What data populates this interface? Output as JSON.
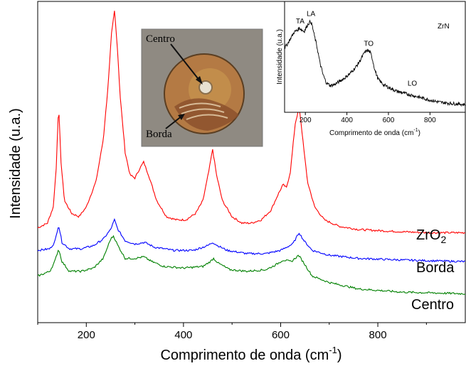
{
  "chart_data": {
    "type": "line",
    "xlabel": "Comprimento de onda (cm",
    "xlabel_sup": "-1",
    "xlabel_end": ")",
    "ylabel": "Intensidade (u.a.)",
    "xlim": [
      100,
      980
    ],
    "xticks": [
      200,
      400,
      600,
      800
    ],
    "grid": false,
    "series": [
      {
        "name": "ZrO",
        "name_sub": "2",
        "color": "#ff0000",
        "points": [
          [
            100,
            0.295
          ],
          [
            120,
            0.31
          ],
          [
            132,
            0.36
          ],
          [
            138,
            0.48
          ],
          [
            143,
            0.68
          ],
          [
            148,
            0.5
          ],
          [
            155,
            0.38
          ],
          [
            170,
            0.34
          ],
          [
            185,
            0.33
          ],
          [
            200,
            0.36
          ],
          [
            220,
            0.44
          ],
          [
            235,
            0.57
          ],
          [
            245,
            0.74
          ],
          [
            252,
            0.9
          ],
          [
            258,
            0.97
          ],
          [
            263,
            0.88
          ],
          [
            270,
            0.7
          ],
          [
            280,
            0.53
          ],
          [
            290,
            0.46
          ],
          [
            300,
            0.45
          ],
          [
            310,
            0.48
          ],
          [
            318,
            0.5
          ],
          [
            328,
            0.46
          ],
          [
            345,
            0.38
          ],
          [
            365,
            0.33
          ],
          [
            385,
            0.32
          ],
          [
            405,
            0.32
          ],
          [
            425,
            0.34
          ],
          [
            440,
            0.38
          ],
          [
            452,
            0.47
          ],
          [
            460,
            0.54
          ],
          [
            468,
            0.46
          ],
          [
            480,
            0.38
          ],
          [
            500,
            0.33
          ],
          [
            520,
            0.31
          ],
          [
            540,
            0.31
          ],
          [
            560,
            0.32
          ],
          [
            580,
            0.35
          ],
          [
            595,
            0.4
          ],
          [
            605,
            0.43
          ],
          [
            612,
            0.42
          ],
          [
            620,
            0.47
          ],
          [
            630,
            0.62
          ],
          [
            638,
            0.67
          ],
          [
            645,
            0.58
          ],
          [
            655,
            0.44
          ],
          [
            670,
            0.36
          ],
          [
            690,
            0.32
          ],
          [
            720,
            0.3
          ],
          [
            760,
            0.29
          ],
          [
            820,
            0.285
          ],
          [
            900,
            0.28
          ],
          [
            980,
            0.28
          ]
        ]
      },
      {
        "name": "Borda",
        "color": "#0000ff",
        "points": [
          [
            100,
            0.225
          ],
          [
            125,
            0.23
          ],
          [
            135,
            0.25
          ],
          [
            143,
            0.305
          ],
          [
            150,
            0.25
          ],
          [
            165,
            0.23
          ],
          [
            190,
            0.23
          ],
          [
            215,
            0.24
          ],
          [
            235,
            0.26
          ],
          [
            250,
            0.29
          ],
          [
            258,
            0.32
          ],
          [
            265,
            0.29
          ],
          [
            280,
            0.255
          ],
          [
            300,
            0.245
          ],
          [
            320,
            0.25
          ],
          [
            340,
            0.235
          ],
          [
            380,
            0.225
          ],
          [
            420,
            0.225
          ],
          [
            450,
            0.24
          ],
          [
            460,
            0.25
          ],
          [
            470,
            0.24
          ],
          [
            490,
            0.225
          ],
          [
            530,
            0.215
          ],
          [
            570,
            0.215
          ],
          [
            600,
            0.225
          ],
          [
            625,
            0.245
          ],
          [
            638,
            0.28
          ],
          [
            648,
            0.255
          ],
          [
            665,
            0.225
          ],
          [
            700,
            0.21
          ],
          [
            760,
            0.2
          ],
          [
            850,
            0.195
          ],
          [
            980,
            0.19
          ]
        ]
      },
      {
        "name": "Centro",
        "color": "#008000",
        "points": [
          [
            100,
            0.145
          ],
          [
            125,
            0.16
          ],
          [
            135,
            0.19
          ],
          [
            143,
            0.23
          ],
          [
            150,
            0.19
          ],
          [
            165,
            0.16
          ],
          [
            190,
            0.16
          ],
          [
            215,
            0.17
          ],
          [
            235,
            0.2
          ],
          [
            250,
            0.26
          ],
          [
            256,
            0.27
          ],
          [
            265,
            0.24
          ],
          [
            280,
            0.2
          ],
          [
            300,
            0.2
          ],
          [
            318,
            0.205
          ],
          [
            335,
            0.19
          ],
          [
            360,
            0.175
          ],
          [
            400,
            0.17
          ],
          [
            440,
            0.175
          ],
          [
            455,
            0.19
          ],
          [
            462,
            0.2
          ],
          [
            472,
            0.185
          ],
          [
            495,
            0.165
          ],
          [
            530,
            0.16
          ],
          [
            570,
            0.165
          ],
          [
            590,
            0.18
          ],
          [
            605,
            0.195
          ],
          [
            622,
            0.19
          ],
          [
            637,
            0.21
          ],
          [
            648,
            0.185
          ],
          [
            665,
            0.145
          ],
          [
            700,
            0.125
          ],
          [
            760,
            0.105
          ],
          [
            850,
            0.095
          ],
          [
            980,
            0.09
          ]
        ]
      }
    ],
    "inset": {
      "title": "ZrN",
      "xlabel": "Comprimento de onda (cm",
      "xlabel_sup": "-1",
      "xlabel_end": ")",
      "ylabel": "Intensidade (u.a.)",
      "xlim": [
        100,
        970
      ],
      "xticks": [
        200,
        400,
        600,
        800
      ],
      "color": "#000000",
      "annotations": [
        {
          "text": "TA",
          "x": 175,
          "y": 0.8
        },
        {
          "text": "LA",
          "x": 227,
          "y": 0.87
        },
        {
          "text": "TO",
          "x": 505,
          "y": 0.6
        },
        {
          "text": "LO",
          "x": 715,
          "y": 0.24
        }
      ],
      "points": [
        [
          100,
          0.58
        ],
        [
          115,
          0.62
        ],
        [
          130,
          0.67
        ],
        [
          145,
          0.72
        ],
        [
          160,
          0.74
        ],
        [
          172,
          0.76
        ],
        [
          185,
          0.74
        ],
        [
          195,
          0.73
        ],
        [
          205,
          0.77
        ],
        [
          215,
          0.8
        ],
        [
          225,
          0.82
        ],
        [
          232,
          0.79
        ],
        [
          240,
          0.72
        ],
        [
          255,
          0.6
        ],
        [
          270,
          0.45
        ],
        [
          285,
          0.34
        ],
        [
          300,
          0.27
        ],
        [
          320,
          0.24
        ],
        [
          340,
          0.25
        ],
        [
          365,
          0.28
        ],
        [
          390,
          0.31
        ],
        [
          415,
          0.35
        ],
        [
          440,
          0.4
        ],
        [
          465,
          0.47
        ],
        [
          485,
          0.54
        ],
        [
          500,
          0.56
        ],
        [
          512,
          0.54
        ],
        [
          520,
          0.5
        ],
        [
          535,
          0.38
        ],
        [
          550,
          0.3
        ],
        [
          575,
          0.25
        ],
        [
          605,
          0.22
        ],
        [
          640,
          0.19
        ],
        [
          680,
          0.17
        ],
        [
          720,
          0.15
        ],
        [
          760,
          0.13
        ],
        [
          800,
          0.11
        ],
        [
          850,
          0.09
        ],
        [
          900,
          0.08
        ],
        [
          970,
          0.07
        ]
      ]
    }
  },
  "photo": {
    "labels": [
      "Centro",
      "Borda"
    ]
  }
}
